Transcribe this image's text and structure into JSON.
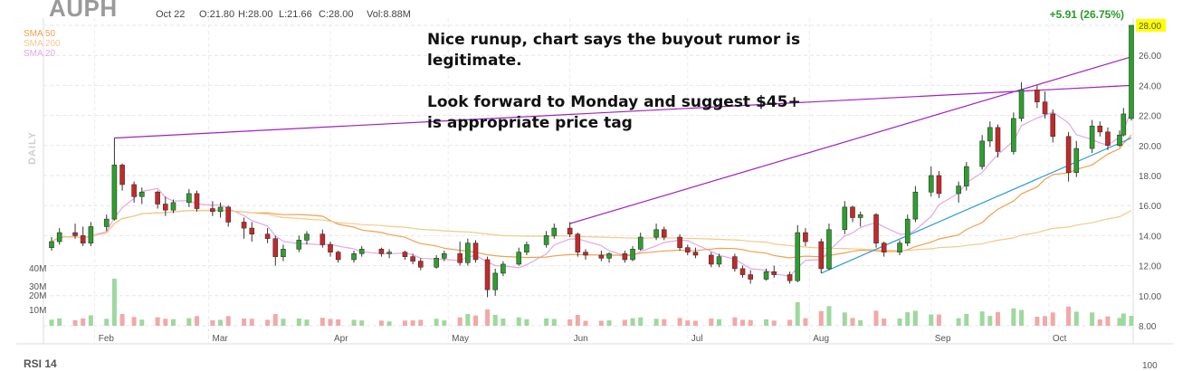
{
  "header": {
    "ticker": "AUPH",
    "date": "Oct 22",
    "open": "O:21.80",
    "high": "H:28.00",
    "low": "L:21.66",
    "close": "C:28.00",
    "volume": "Vol:8.88M",
    "change": "+5.91 (26.75%)"
  },
  "legend": [
    {
      "label": "SMA 50",
      "color": "#f0a050"
    },
    {
      "label": "SMA 200",
      "color": "#f3c98a"
    },
    {
      "label": "SMA 20",
      "color": "#e3a6e8"
    }
  ],
  "timeframe_label": "DAILY",
  "annotation": "Nice runup, chart says the buyout rumor is legitimate.\n\nLook forward to Monday and suggest $45+ is appropriate price tag",
  "lower_panel_label": "RSI 14",
  "lower_panel_tick": "100",
  "colors": {
    "up": "#2ca02c",
    "down": "#c62828",
    "trend": "#a020c0",
    "trendline": "#2a9ad8",
    "volume_up": "#9ed89e",
    "volume_down": "#f2a8a8",
    "price_highlight": "#ffff00"
  },
  "chart_data": {
    "type": "candlestick",
    "y_ticks": [
      "28.00",
      "26.00",
      "24.00",
      "22.00",
      "20.00",
      "18.00",
      "16.00",
      "14.00",
      "12.00",
      "10.00",
      "8.00"
    ],
    "ylim": [
      8,
      28
    ],
    "x_labels": [
      "Feb",
      "Mar",
      "Apr",
      "May",
      "Jun",
      "Jul",
      "Aug",
      "Sep",
      "Oct"
    ],
    "volume_ticks": [
      "40M",
      "30M",
      "20M",
      "10M"
    ],
    "last_price": "28.00",
    "series": [
      {
        "x": "2020-01-21",
        "o": 13.2,
        "h": 13.9,
        "l": 13.0,
        "c": 13.6
      },
      {
        "x": "2020-01-23",
        "o": 13.6,
        "h": 14.5,
        "l": 13.4,
        "c": 14.2
      },
      {
        "x": "2020-01-27",
        "o": 14.2,
        "h": 14.8,
        "l": 13.8,
        "c": 14.0
      },
      {
        "x": "2020-01-29",
        "o": 14.0,
        "h": 14.6,
        "l": 13.3,
        "c": 13.5
      },
      {
        "x": "2020-01-31",
        "o": 13.5,
        "h": 14.9,
        "l": 13.3,
        "c": 14.6
      },
      {
        "x": "2020-02-04",
        "o": 14.6,
        "h": 15.4,
        "l": 14.3,
        "c": 15.1
      },
      {
        "x": "2020-02-06",
        "o": 15.1,
        "h": 20.5,
        "l": 15.0,
        "c": 18.7
      },
      {
        "x": "2020-02-08",
        "o": 18.7,
        "h": 18.8,
        "l": 17.0,
        "c": 17.4
      },
      {
        "x": "2020-02-11",
        "o": 17.4,
        "h": 17.6,
        "l": 16.2,
        "c": 16.6
      },
      {
        "x": "2020-02-13",
        "o": 16.6,
        "h": 17.2,
        "l": 16.1,
        "c": 16.9
      },
      {
        "x": "2020-02-17",
        "o": 16.9,
        "h": 17.0,
        "l": 15.8,
        "c": 16.1
      },
      {
        "x": "2020-02-19",
        "o": 16.1,
        "h": 16.6,
        "l": 15.3,
        "c": 15.7
      },
      {
        "x": "2020-02-21",
        "o": 15.7,
        "h": 16.4,
        "l": 15.5,
        "c": 16.2
      },
      {
        "x": "2020-02-25",
        "o": 16.2,
        "h": 17.1,
        "l": 15.9,
        "c": 16.8
      },
      {
        "x": "2020-02-27",
        "o": 16.8,
        "h": 17.0,
        "l": 15.6,
        "c": 15.8
      },
      {
        "x": "2020-03-02",
        "o": 15.8,
        "h": 16.3,
        "l": 15.3,
        "c": 15.6
      },
      {
        "x": "2020-03-04",
        "o": 15.6,
        "h": 16.2,
        "l": 15.2,
        "c": 15.9
      },
      {
        "x": "2020-03-06",
        "o": 15.9,
        "h": 16.0,
        "l": 14.6,
        "c": 14.9
      },
      {
        "x": "2020-03-10",
        "o": 14.9,
        "h": 15.2,
        "l": 13.8,
        "c": 14.5
      },
      {
        "x": "2020-03-12",
        "o": 14.5,
        "h": 14.9,
        "l": 13.6,
        "c": 14.1
      },
      {
        "x": "2020-03-16",
        "o": 14.1,
        "h": 14.5,
        "l": 13.5,
        "c": 13.8
      },
      {
        "x": "2020-03-18",
        "o": 13.8,
        "h": 14.0,
        "l": 12.0,
        "c": 12.6
      },
      {
        "x": "2020-03-20",
        "o": 12.6,
        "h": 13.4,
        "l": 12.3,
        "c": 13.1
      },
      {
        "x": "2020-03-24",
        "o": 13.1,
        "h": 14.0,
        "l": 12.9,
        "c": 13.7
      },
      {
        "x": "2020-03-26",
        "o": 13.7,
        "h": 14.3,
        "l": 13.4,
        "c": 14.1
      },
      {
        "x": "2020-03-30",
        "o": 14.1,
        "h": 14.4,
        "l": 13.2,
        "c": 13.4
      },
      {
        "x": "2020-04-01",
        "o": 13.4,
        "h": 13.6,
        "l": 12.6,
        "c": 12.9
      },
      {
        "x": "2020-04-03",
        "o": 12.9,
        "h": 13.0,
        "l": 12.2,
        "c": 12.4
      },
      {
        "x": "2020-04-07",
        "o": 12.4,
        "h": 13.0,
        "l": 12.2,
        "c": 12.8
      },
      {
        "x": "2020-04-09",
        "o": 12.8,
        "h": 13.3,
        "l": 12.6,
        "c": 13.1
      },
      {
        "x": "2020-04-14",
        "o": 13.1,
        "h": 13.2,
        "l": 12.6,
        "c": 12.8
      },
      {
        "x": "2020-04-16",
        "o": 12.8,
        "h": 13.1,
        "l": 12.5,
        "c": 12.9
      },
      {
        "x": "2020-04-20",
        "o": 12.9,
        "h": 13.0,
        "l": 12.4,
        "c": 12.6
      },
      {
        "x": "2020-04-22",
        "o": 12.6,
        "h": 12.8,
        "l": 12.1,
        "c": 12.3
      },
      {
        "x": "2020-04-24",
        "o": 12.3,
        "h": 12.5,
        "l": 11.7,
        "c": 11.9
      },
      {
        "x": "2020-04-28",
        "o": 11.9,
        "h": 12.7,
        "l": 11.8,
        "c": 12.5
      },
      {
        "x": "2020-04-30",
        "o": 12.5,
        "h": 13.0,
        "l": 12.3,
        "c": 12.8
      },
      {
        "x": "2020-05-04",
        "o": 12.8,
        "h": 13.6,
        "l": 12.0,
        "c": 12.2
      },
      {
        "x": "2020-05-06",
        "o": 12.2,
        "h": 13.8,
        "l": 12.0,
        "c": 13.5
      },
      {
        "x": "2020-05-08",
        "o": 13.5,
        "h": 13.7,
        "l": 12.2,
        "c": 12.4
      },
      {
        "x": "2020-05-11",
        "o": 12.4,
        "h": 12.6,
        "l": 9.9,
        "c": 10.4
      },
      {
        "x": "2020-05-13",
        "o": 10.4,
        "h": 11.8,
        "l": 10.0,
        "c": 11.5
      },
      {
        "x": "2020-05-15",
        "o": 11.5,
        "h": 12.3,
        "l": 11.3,
        "c": 12.1
      },
      {
        "x": "2020-05-19",
        "o": 12.1,
        "h": 13.2,
        "l": 12.0,
        "c": 12.9
      },
      {
        "x": "2020-05-21",
        "o": 12.9,
        "h": 13.6,
        "l": 12.7,
        "c": 13.4
      },
      {
        "x": "2020-05-26",
        "o": 13.4,
        "h": 14.3,
        "l": 13.2,
        "c": 14.0
      },
      {
        "x": "2020-05-28",
        "o": 14.0,
        "h": 14.8,
        "l": 13.8,
        "c": 14.5
      },
      {
        "x": "2020-06-01",
        "o": 14.5,
        "h": 14.9,
        "l": 13.9,
        "c": 14.1
      },
      {
        "x": "2020-06-03",
        "o": 14.1,
        "h": 14.2,
        "l": 12.6,
        "c": 12.9
      },
      {
        "x": "2020-06-05",
        "o": 12.9,
        "h": 13.1,
        "l": 12.4,
        "c": 12.7
      },
      {
        "x": "2020-06-09",
        "o": 12.7,
        "h": 13.0,
        "l": 12.3,
        "c": 12.5
      },
      {
        "x": "2020-06-11",
        "o": 12.5,
        "h": 12.9,
        "l": 12.2,
        "c": 12.8
      },
      {
        "x": "2020-06-15",
        "o": 12.8,
        "h": 13.0,
        "l": 12.2,
        "c": 12.4
      },
      {
        "x": "2020-06-17",
        "o": 12.4,
        "h": 13.3,
        "l": 12.3,
        "c": 13.1
      },
      {
        "x": "2020-06-19",
        "o": 13.1,
        "h": 14.2,
        "l": 13.0,
        "c": 13.9
      },
      {
        "x": "2020-06-23",
        "o": 13.9,
        "h": 14.8,
        "l": 13.7,
        "c": 14.4
      },
      {
        "x": "2020-06-25",
        "o": 14.4,
        "h": 14.6,
        "l": 13.7,
        "c": 13.9
      },
      {
        "x": "2020-06-29",
        "o": 13.9,
        "h": 14.1,
        "l": 13.0,
        "c": 13.2
      },
      {
        "x": "2020-07-01",
        "o": 13.2,
        "h": 13.4,
        "l": 12.7,
        "c": 12.9
      },
      {
        "x": "2020-07-03",
        "o": 12.9,
        "h": 13.2,
        "l": 12.5,
        "c": 12.7
      },
      {
        "x": "2020-07-07",
        "o": 12.7,
        "h": 12.9,
        "l": 11.9,
        "c": 12.1
      },
      {
        "x": "2020-07-09",
        "o": 12.1,
        "h": 12.8,
        "l": 11.9,
        "c": 12.6
      },
      {
        "x": "2020-07-13",
        "o": 12.6,
        "h": 12.8,
        "l": 11.6,
        "c": 11.8
      },
      {
        "x": "2020-07-15",
        "o": 11.8,
        "h": 12.0,
        "l": 11.2,
        "c": 11.4
      },
      {
        "x": "2020-07-17",
        "o": 11.4,
        "h": 11.7,
        "l": 10.8,
        "c": 11.1
      },
      {
        "x": "2020-07-21",
        "o": 11.1,
        "h": 11.8,
        "l": 11.0,
        "c": 11.6
      },
      {
        "x": "2020-07-23",
        "o": 11.6,
        "h": 12.0,
        "l": 11.2,
        "c": 11.4
      },
      {
        "x": "2020-07-27",
        "o": 11.4,
        "h": 11.6,
        "l": 10.8,
        "c": 11.0
      },
      {
        "x": "2020-07-29",
        "o": 11.0,
        "h": 14.7,
        "l": 10.9,
        "c": 14.2
      },
      {
        "x": "2020-07-31",
        "o": 14.2,
        "h": 14.5,
        "l": 13.3,
        "c": 13.6
      },
      {
        "x": "2020-08-04",
        "o": 13.6,
        "h": 13.8,
        "l": 11.5,
        "c": 11.8
      },
      {
        "x": "2020-08-06",
        "o": 11.8,
        "h": 14.8,
        "l": 11.7,
        "c": 14.4
      },
      {
        "x": "2020-08-10",
        "o": 14.4,
        "h": 16.3,
        "l": 14.1,
        "c": 15.9
      },
      {
        "x": "2020-08-12",
        "o": 15.9,
        "h": 16.0,
        "l": 14.9,
        "c": 15.2
      },
      {
        "x": "2020-08-14",
        "o": 15.2,
        "h": 15.6,
        "l": 14.6,
        "c": 15.4
      },
      {
        "x": "2020-08-18",
        "o": 15.4,
        "h": 15.5,
        "l": 13.2,
        "c": 13.5
      },
      {
        "x": "2020-08-20",
        "o": 13.5,
        "h": 13.6,
        "l": 12.6,
        "c": 12.9
      },
      {
        "x": "2020-08-24",
        "o": 12.9,
        "h": 13.7,
        "l": 12.7,
        "c": 13.5
      },
      {
        "x": "2020-08-26",
        "o": 13.5,
        "h": 15.4,
        "l": 13.3,
        "c": 15.1
      },
      {
        "x": "2020-08-28",
        "o": 15.1,
        "h": 17.3,
        "l": 14.9,
        "c": 16.9
      },
      {
        "x": "2020-09-01",
        "o": 16.9,
        "h": 18.6,
        "l": 16.6,
        "c": 18.0
      },
      {
        "x": "2020-09-03",
        "o": 18.0,
        "h": 18.3,
        "l": 16.5,
        "c": 16.8
      },
      {
        "x": "2020-09-08",
        "o": 16.8,
        "h": 17.6,
        "l": 16.2,
        "c": 17.3
      },
      {
        "x": "2020-09-10",
        "o": 17.3,
        "h": 18.9,
        "l": 17.0,
        "c": 18.6
      },
      {
        "x": "2020-09-14",
        "o": 18.6,
        "h": 20.7,
        "l": 18.4,
        "c": 20.3
      },
      {
        "x": "2020-09-16",
        "o": 20.3,
        "h": 21.6,
        "l": 19.9,
        "c": 21.2
      },
      {
        "x": "2020-09-18",
        "o": 21.2,
        "h": 21.4,
        "l": 19.2,
        "c": 19.6
      },
      {
        "x": "2020-09-22",
        "o": 19.6,
        "h": 22.2,
        "l": 19.4,
        "c": 21.8
      },
      {
        "x": "2020-09-24",
        "o": 21.8,
        "h": 24.2,
        "l": 21.6,
        "c": 23.7
      },
      {
        "x": "2020-09-28",
        "o": 23.7,
        "h": 24.0,
        "l": 22.5,
        "c": 22.9
      },
      {
        "x": "2020-09-30",
        "o": 22.9,
        "h": 23.6,
        "l": 21.8,
        "c": 22.1
      },
      {
        "x": "2020-10-02",
        "o": 22.1,
        "h": 22.4,
        "l": 20.2,
        "c": 20.6
      },
      {
        "x": "2020-10-06",
        "o": 20.6,
        "h": 20.9,
        "l": 17.6,
        "c": 18.2
      },
      {
        "x": "2020-10-08",
        "o": 18.2,
        "h": 20.3,
        "l": 17.9,
        "c": 19.8
      },
      {
        "x": "2020-10-12",
        "o": 19.8,
        "h": 21.7,
        "l": 19.5,
        "c": 21.3
      },
      {
        "x": "2020-10-14",
        "o": 21.3,
        "h": 21.6,
        "l": 20.6,
        "c": 20.9
      },
      {
        "x": "2020-10-16",
        "o": 20.9,
        "h": 21.2,
        "l": 19.7,
        "c": 20.0
      },
      {
        "x": "2020-10-19",
        "o": 20.0,
        "h": 21.0,
        "l": 19.9,
        "c": 20.7
      },
      {
        "x": "2020-10-20",
        "o": 20.7,
        "h": 22.5,
        "l": 20.6,
        "c": 22.1
      },
      {
        "x": "2020-10-22",
        "o": 21.8,
        "h": 28.0,
        "l": 21.66,
        "c": 28.0
      }
    ]
  }
}
